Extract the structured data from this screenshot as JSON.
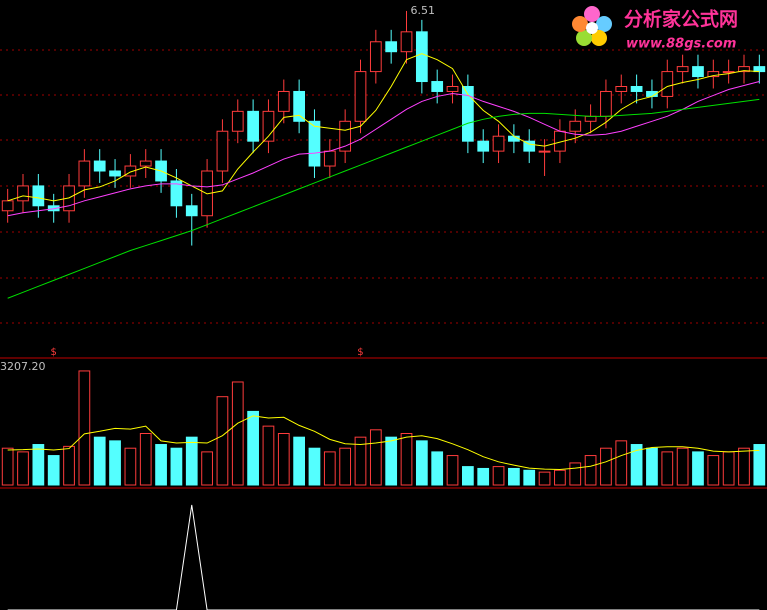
{
  "chart_data": [
    {
      "type": "candlestick",
      "high_label": "6.51",
      "up_color": "#ff3c3c",
      "down_color": "#54ffff",
      "ylim": [
        3.2,
        6.6
      ],
      "open": [
        4.5,
        4.6,
        4.75,
        4.55,
        4.5,
        4.75,
        5.0,
        4.9,
        4.85,
        4.95,
        5.0,
        4.8,
        4.55,
        4.45,
        4.9,
        5.3,
        5.5,
        5.2,
        5.5,
        5.7,
        5.4,
        4.95,
        5.1,
        5.4,
        5.9,
        6.2,
        6.1,
        6.3,
        5.8,
        5.7,
        5.75,
        5.2,
        5.1,
        5.25,
        5.2,
        5.1,
        5.1,
        5.3,
        5.4,
        5.45,
        5.7,
        5.75,
        5.7,
        5.65,
        5.9,
        5.95,
        5.85,
        5.9,
        5.9,
        5.95
      ],
      "high": [
        4.72,
        4.87,
        4.87,
        4.67,
        4.87,
        5.12,
        5.12,
        5.02,
        5.07,
        5.12,
        5.12,
        4.92,
        4.67,
        5.02,
        5.42,
        5.62,
        5.62,
        5.62,
        5.82,
        5.82,
        5.52,
        5.22,
        5.52,
        6.02,
        6.32,
        6.32,
        6.51,
        6.42,
        5.92,
        5.87,
        5.87,
        5.32,
        5.37,
        5.37,
        5.32,
        5.22,
        5.42,
        5.52,
        5.57,
        5.82,
        5.87,
        5.87,
        5.82,
        6.02,
        6.07,
        6.07,
        6.02,
        6.02,
        6.07,
        6.07
      ],
      "low": [
        4.38,
        4.48,
        4.43,
        4.38,
        4.38,
        4.63,
        4.78,
        4.73,
        4.73,
        4.83,
        4.68,
        4.43,
        4.15,
        4.33,
        4.78,
        5.18,
        5.08,
        5.08,
        5.38,
        5.28,
        4.83,
        4.83,
        4.98,
        5.28,
        5.78,
        5.98,
        5.98,
        5.68,
        5.58,
        5.58,
        5.08,
        4.98,
        4.98,
        5.08,
        4.98,
        4.85,
        4.98,
        5.18,
        5.28,
        5.33,
        5.58,
        5.58,
        5.53,
        5.53,
        5.78,
        5.73,
        5.73,
        5.78,
        5.78,
        5.78
      ],
      "close": [
        4.6,
        4.75,
        4.55,
        4.5,
        4.75,
        5.0,
        4.9,
        4.85,
        4.95,
        5.0,
        4.8,
        4.55,
        4.45,
        4.9,
        5.3,
        5.5,
        5.2,
        5.5,
        5.7,
        5.4,
        4.95,
        5.1,
        5.4,
        5.9,
        6.2,
        6.1,
        6.3,
        5.8,
        5.7,
        5.75,
        5.2,
        5.1,
        5.25,
        5.2,
        5.1,
        5.1,
        5.3,
        5.4,
        5.45,
        5.7,
        5.75,
        5.7,
        5.65,
        5.9,
        5.95,
        5.85,
        5.9,
        5.9,
        5.95,
        5.9
      ],
      "signals": [
        null,
        null,
        null,
        "$",
        null,
        null,
        null,
        null,
        null,
        null,
        null,
        null,
        null,
        null,
        null,
        null,
        null,
        null,
        null,
        null,
        null,
        null,
        null,
        "$",
        null,
        null,
        null,
        null,
        null,
        null,
        null,
        null,
        null,
        null,
        null,
        null,
        null,
        null,
        null,
        null,
        null,
        null,
        null,
        null,
        null,
        null,
        null,
        null,
        null,
        null
      ],
      "series": [
        {
          "color": "#ffff00",
          "values": [
            4.6,
            4.65,
            4.63,
            4.6,
            4.63,
            4.71,
            4.74,
            4.8,
            4.89,
            4.94,
            4.9,
            4.83,
            4.75,
            4.67,
            4.7,
            4.92,
            5.09,
            5.25,
            5.44,
            5.46,
            5.35,
            5.33,
            5.31,
            5.35,
            5.51,
            5.75,
            6.02,
            6.08,
            6.02,
            5.93,
            5.67,
            5.51,
            5.4,
            5.25,
            5.17,
            5.15,
            5.19,
            5.23,
            5.29,
            5.39,
            5.52,
            5.61,
            5.65,
            5.75,
            5.79,
            5.82,
            5.86,
            5.88,
            5.91,
            5.9
          ]
        },
        {
          "color": "#ff40ff",
          "values": [
            4.45,
            4.48,
            4.5,
            4.52,
            4.55,
            4.6,
            4.64,
            4.68,
            4.72,
            4.75,
            4.77,
            4.77,
            4.75,
            4.74,
            4.76,
            4.82,
            4.88,
            4.95,
            5.02,
            5.07,
            5.08,
            5.1,
            5.15,
            5.22,
            5.32,
            5.42,
            5.52,
            5.6,
            5.65,
            5.68,
            5.66,
            5.6,
            5.55,
            5.5,
            5.44,
            5.37,
            5.3,
            5.27,
            5.26,
            5.27,
            5.3,
            5.35,
            5.4,
            5.45,
            5.52,
            5.6,
            5.66,
            5.72,
            5.76,
            5.8
          ]
        },
        {
          "color": "#00e000",
          "values": [
            3.62,
            3.68,
            3.74,
            3.8,
            3.86,
            3.92,
            3.98,
            4.04,
            4.1,
            4.15,
            4.2,
            4.25,
            4.3,
            4.36,
            4.42,
            4.48,
            4.54,
            4.6,
            4.66,
            4.72,
            4.78,
            4.84,
            4.9,
            4.96,
            5.02,
            5.08,
            5.14,
            5.2,
            5.26,
            5.32,
            5.38,
            5.42,
            5.45,
            5.47,
            5.48,
            5.48,
            5.47,
            5.46,
            5.45,
            5.45,
            5.46,
            5.47,
            5.48,
            5.5,
            5.52,
            5.54,
            5.56,
            5.58,
            5.6,
            5.62
          ]
        }
      ]
    },
    {
      "type": "bar",
      "ylim": [
        0,
        3207.2
      ],
      "yticks": [
        {
          "value": 3207.2,
          "label": "3207.20"
        }
      ],
      "values": [
        1000,
        900,
        1100,
        800,
        1050,
        3100,
        1300,
        1200,
        1000,
        1400,
        1100,
        1000,
        1300,
        900,
        2400,
        2800,
        2000,
        1600,
        1400,
        1300,
        1000,
        900,
        1000,
        1300,
        1500,
        1300,
        1400,
        1200,
        900,
        800,
        500,
        450,
        500,
        450,
        400,
        350,
        400,
        600,
        800,
        1000,
        1200,
        1100,
        1000,
        900,
        1000,
        900,
        800,
        900,
        1000,
        1100
      ],
      "series": [
        {
          "color": "#ffff00",
          "values": [
            950,
            960,
            980,
            950,
            990,
            1390,
            1460,
            1540,
            1520,
            1600,
            1200,
            1140,
            1160,
            1140,
            1340,
            1680,
            1880,
            1820,
            1840,
            1620,
            1460,
            1240,
            1120,
            1100,
            1140,
            1200,
            1300,
            1340,
            1260,
            1120,
            960,
            770,
            630,
            540,
            460,
            430,
            420,
            460,
            510,
            630,
            800,
            940,
            1020,
            1040,
            1040,
            1000,
            920,
            900,
            920,
            940
          ]
        }
      ]
    },
    {
      "type": "line",
      "ylim": [
        0,
        1
      ],
      "color": "#ffffff",
      "values": [
        0,
        0,
        0,
        0,
        0,
        0,
        0,
        0,
        0,
        0,
        0,
        0,
        1,
        0,
        0,
        0,
        0,
        0,
        0,
        0,
        0,
        0,
        0,
        0,
        0,
        0,
        0,
        0,
        0,
        0,
        0,
        0,
        0,
        0,
        0,
        0,
        0,
        0,
        0,
        0,
        0,
        0,
        0,
        0,
        0,
        0,
        0,
        0,
        0,
        0
      ]
    }
  ],
  "watermark": {
    "title": "分析家公式网",
    "url": "www.88gs.com"
  }
}
